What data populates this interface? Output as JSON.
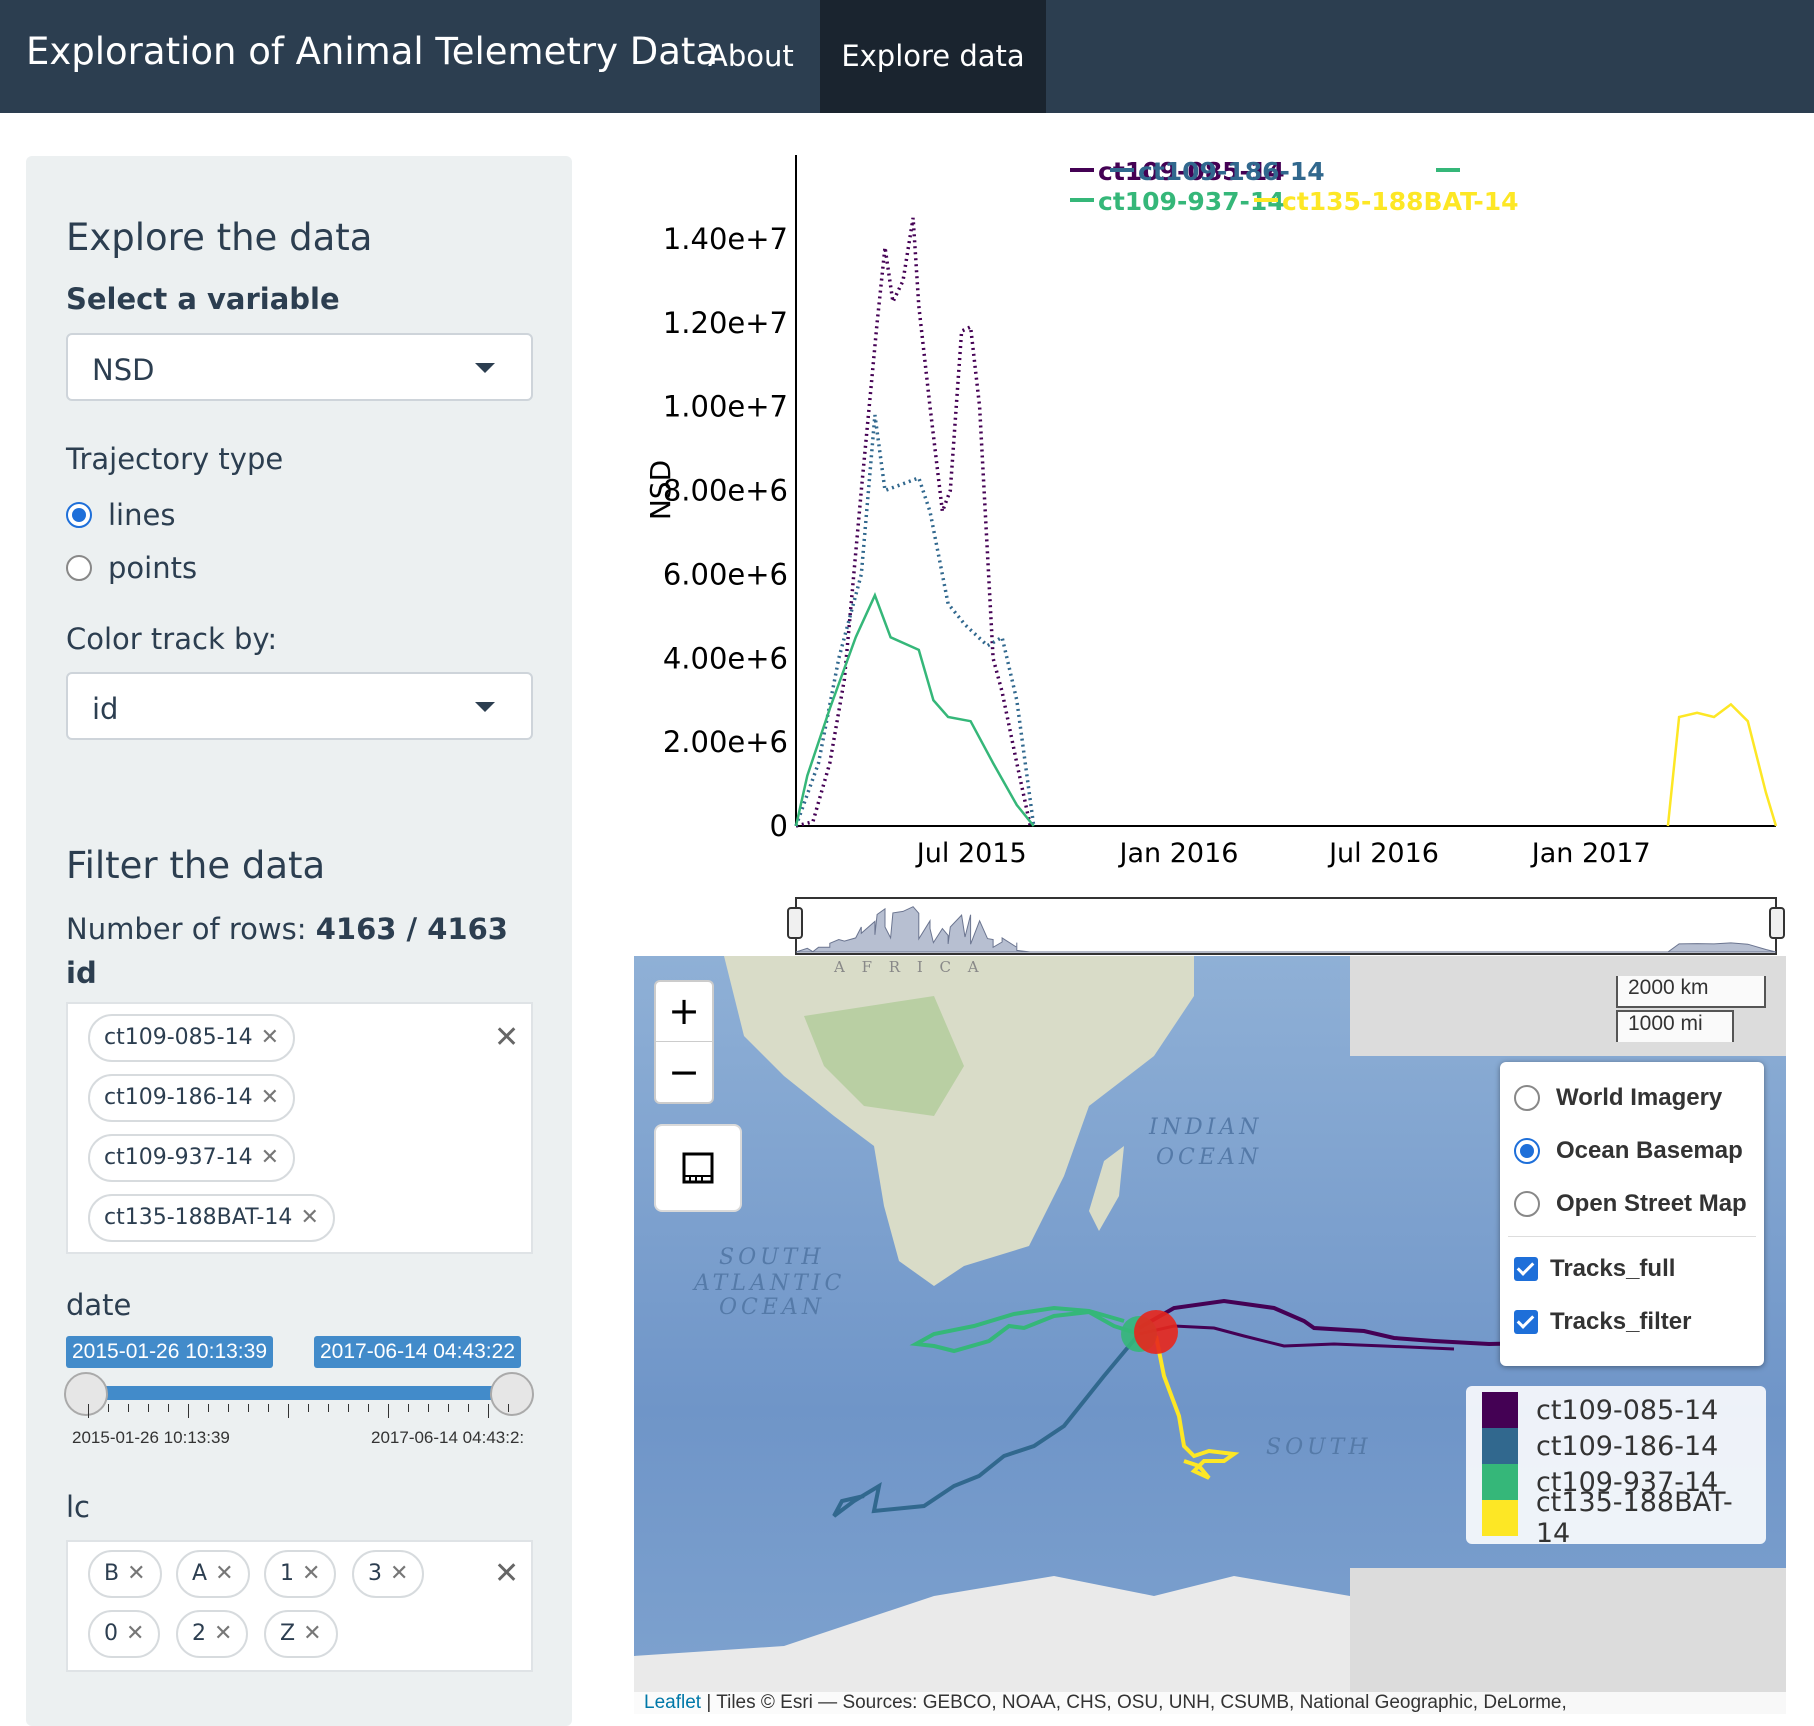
{
  "navbar": {
    "brand": "Exploration of Animal Telemetry Data",
    "links": [
      "About",
      "Explore data"
    ],
    "active": "Explore data"
  },
  "sidebar": {
    "explore_title": "Explore the data",
    "variable_label": "Select a variable",
    "variable_value": "NSD",
    "trajectory_label": "Trajectory type",
    "trajectory_options": [
      "lines",
      "points"
    ],
    "trajectory_selected": "lines",
    "color_label": "Color track by:",
    "color_value": "id",
    "filter_title": "Filter the data",
    "rows_label": "Number of rows:",
    "rows_value": "4163 / 4163",
    "id_label": "id",
    "id_tags": [
      "ct109-085-14",
      "ct109-186-14",
      "ct109-937-14",
      "ct135-188BAT-14"
    ],
    "date_label": "date",
    "date_from": "2015-01-26 10:13:39",
    "date_to": "2017-06-14 04:43:22",
    "date_min_label": "2015-01-26 10:13:39",
    "date_max_label": "2017-06-14 04:43:2:",
    "lc_label": "lc",
    "lc_tags": [
      "B",
      "A",
      "1",
      "3",
      "0",
      "2",
      "Z"
    ]
  },
  "chart_data": {
    "type": "line",
    "ylabel": "NSD",
    "xlabel": "",
    "ylim": [
      0,
      16000000
    ],
    "y_ticks": [
      "0",
      "2.00e+6",
      "4.00e+6",
      "6.00e+6",
      "8.00e+6",
      "1.00e+7",
      "1.20e+7",
      "1.40e+7"
    ],
    "x_ticks": [
      "Jul 2015",
      "Jan 2016",
      "Jul 2016",
      "Jan 2017"
    ],
    "x_range": [
      "2015-01-26",
      "2017-06-14"
    ],
    "series": [
      {
        "name": "ct109-085-14",
        "color": "#440154",
        "style": "dotted",
        "points": [
          [
            "2015-01-26",
            0
          ],
          [
            "2015-02-10",
            100000
          ],
          [
            "2015-02-25",
            1500000
          ],
          [
            "2015-03-10",
            3500000
          ],
          [
            "2015-03-25",
            8000000
          ],
          [
            "2015-04-08",
            12000000
          ],
          [
            "2015-04-15",
            13800000
          ],
          [
            "2015-04-22",
            12500000
          ],
          [
            "2015-05-01",
            13000000
          ],
          [
            "2015-05-10",
            14500000
          ],
          [
            "2015-05-15",
            12400000
          ],
          [
            "2015-05-25",
            10000000
          ],
          [
            "2015-06-05",
            7500000
          ],
          [
            "2015-06-12",
            8000000
          ],
          [
            "2015-06-22",
            11800000
          ],
          [
            "2015-06-30",
            11900000
          ],
          [
            "2015-07-08",
            10000000
          ],
          [
            "2015-07-20",
            4000000
          ],
          [
            "2015-07-28",
            3200000
          ],
          [
            "2015-08-10",
            1500000
          ],
          [
            "2015-08-22",
            0
          ]
        ]
      },
      {
        "name": "ct109-186-14",
        "color": "#31688e",
        "style": "dotted",
        "points": [
          [
            "2015-01-26",
            0
          ],
          [
            "2015-02-15",
            1500000
          ],
          [
            "2015-03-05",
            4000000
          ],
          [
            "2015-03-25",
            6000000
          ],
          [
            "2015-04-06",
            9800000
          ],
          [
            "2015-04-15",
            8000000
          ],
          [
            "2015-05-15",
            8300000
          ],
          [
            "2015-05-25",
            7500000
          ],
          [
            "2015-06-10",
            5300000
          ],
          [
            "2015-06-25",
            4800000
          ],
          [
            "2015-07-15",
            4300000
          ],
          [
            "2015-07-28",
            4500000
          ],
          [
            "2015-08-10",
            3000000
          ],
          [
            "2015-08-25",
            0
          ]
        ]
      },
      {
        "name": "ct109-937-14",
        "color": "#35b779",
        "style": "solid",
        "points": [
          [
            "2015-01-26",
            0
          ],
          [
            "2015-02-05",
            1200000
          ],
          [
            "2015-02-25",
            2800000
          ],
          [
            "2015-03-20",
            4500000
          ],
          [
            "2015-04-06",
            5500000
          ],
          [
            "2015-04-20",
            4500000
          ],
          [
            "2015-05-15",
            4200000
          ],
          [
            "2015-05-28",
            3000000
          ],
          [
            "2015-06-10",
            2600000
          ],
          [
            "2015-06-30",
            2500000
          ],
          [
            "2015-07-20",
            1500000
          ],
          [
            "2015-08-10",
            500000
          ],
          [
            "2015-08-25",
            0
          ]
        ]
      },
      {
        "name": "ct135-188BAT-14",
        "color": "#fde725",
        "style": "solid",
        "points": [
          [
            "2017-03-10",
            0
          ],
          [
            "2017-03-20",
            2600000
          ],
          [
            "2017-04-05",
            2700000
          ],
          [
            "2017-04-20",
            2600000
          ],
          [
            "2017-05-05",
            2900000
          ],
          [
            "2017-05-20",
            2500000
          ],
          [
            "2017-06-05",
            800000
          ],
          [
            "2017-06-14",
            0
          ]
        ]
      }
    ],
    "legend_position": "top-right"
  },
  "map": {
    "zoom_in": "+",
    "zoom_out": "−",
    "scale_km": "2000 km",
    "scale_mi": "1000 mi",
    "base_layers": [
      "World Imagery",
      "Ocean Basemap",
      "Open Street Map"
    ],
    "base_selected": "Ocean Basemap",
    "overlays": [
      "Tracks_full",
      "Tracks_filter"
    ],
    "labels": {
      "africa": "A F R I C A",
      "indian_1": "INDIAN",
      "indian_2": "OCEAN",
      "satl_1": "SOUTH",
      "satl_2": "ATLANTIC",
      "satl_3": "OCEAN",
      "south": "SOUTH"
    },
    "legend": [
      {
        "name": "ct109-085-14",
        "color": "#440154"
      },
      {
        "name": "ct109-186-14",
        "color": "#31688e"
      },
      {
        "name": "ct109-937-14",
        "color": "#35b779"
      },
      {
        "name": "ct135-188BAT-14",
        "color": "#fde725"
      }
    ],
    "attribution_link": "Leaflet",
    "attribution_text": " | Tiles © Esri — Sources: GEBCO, NOAA, CHS, OSU, UNH, CSUMB, National Geographic, DeLorme,"
  }
}
